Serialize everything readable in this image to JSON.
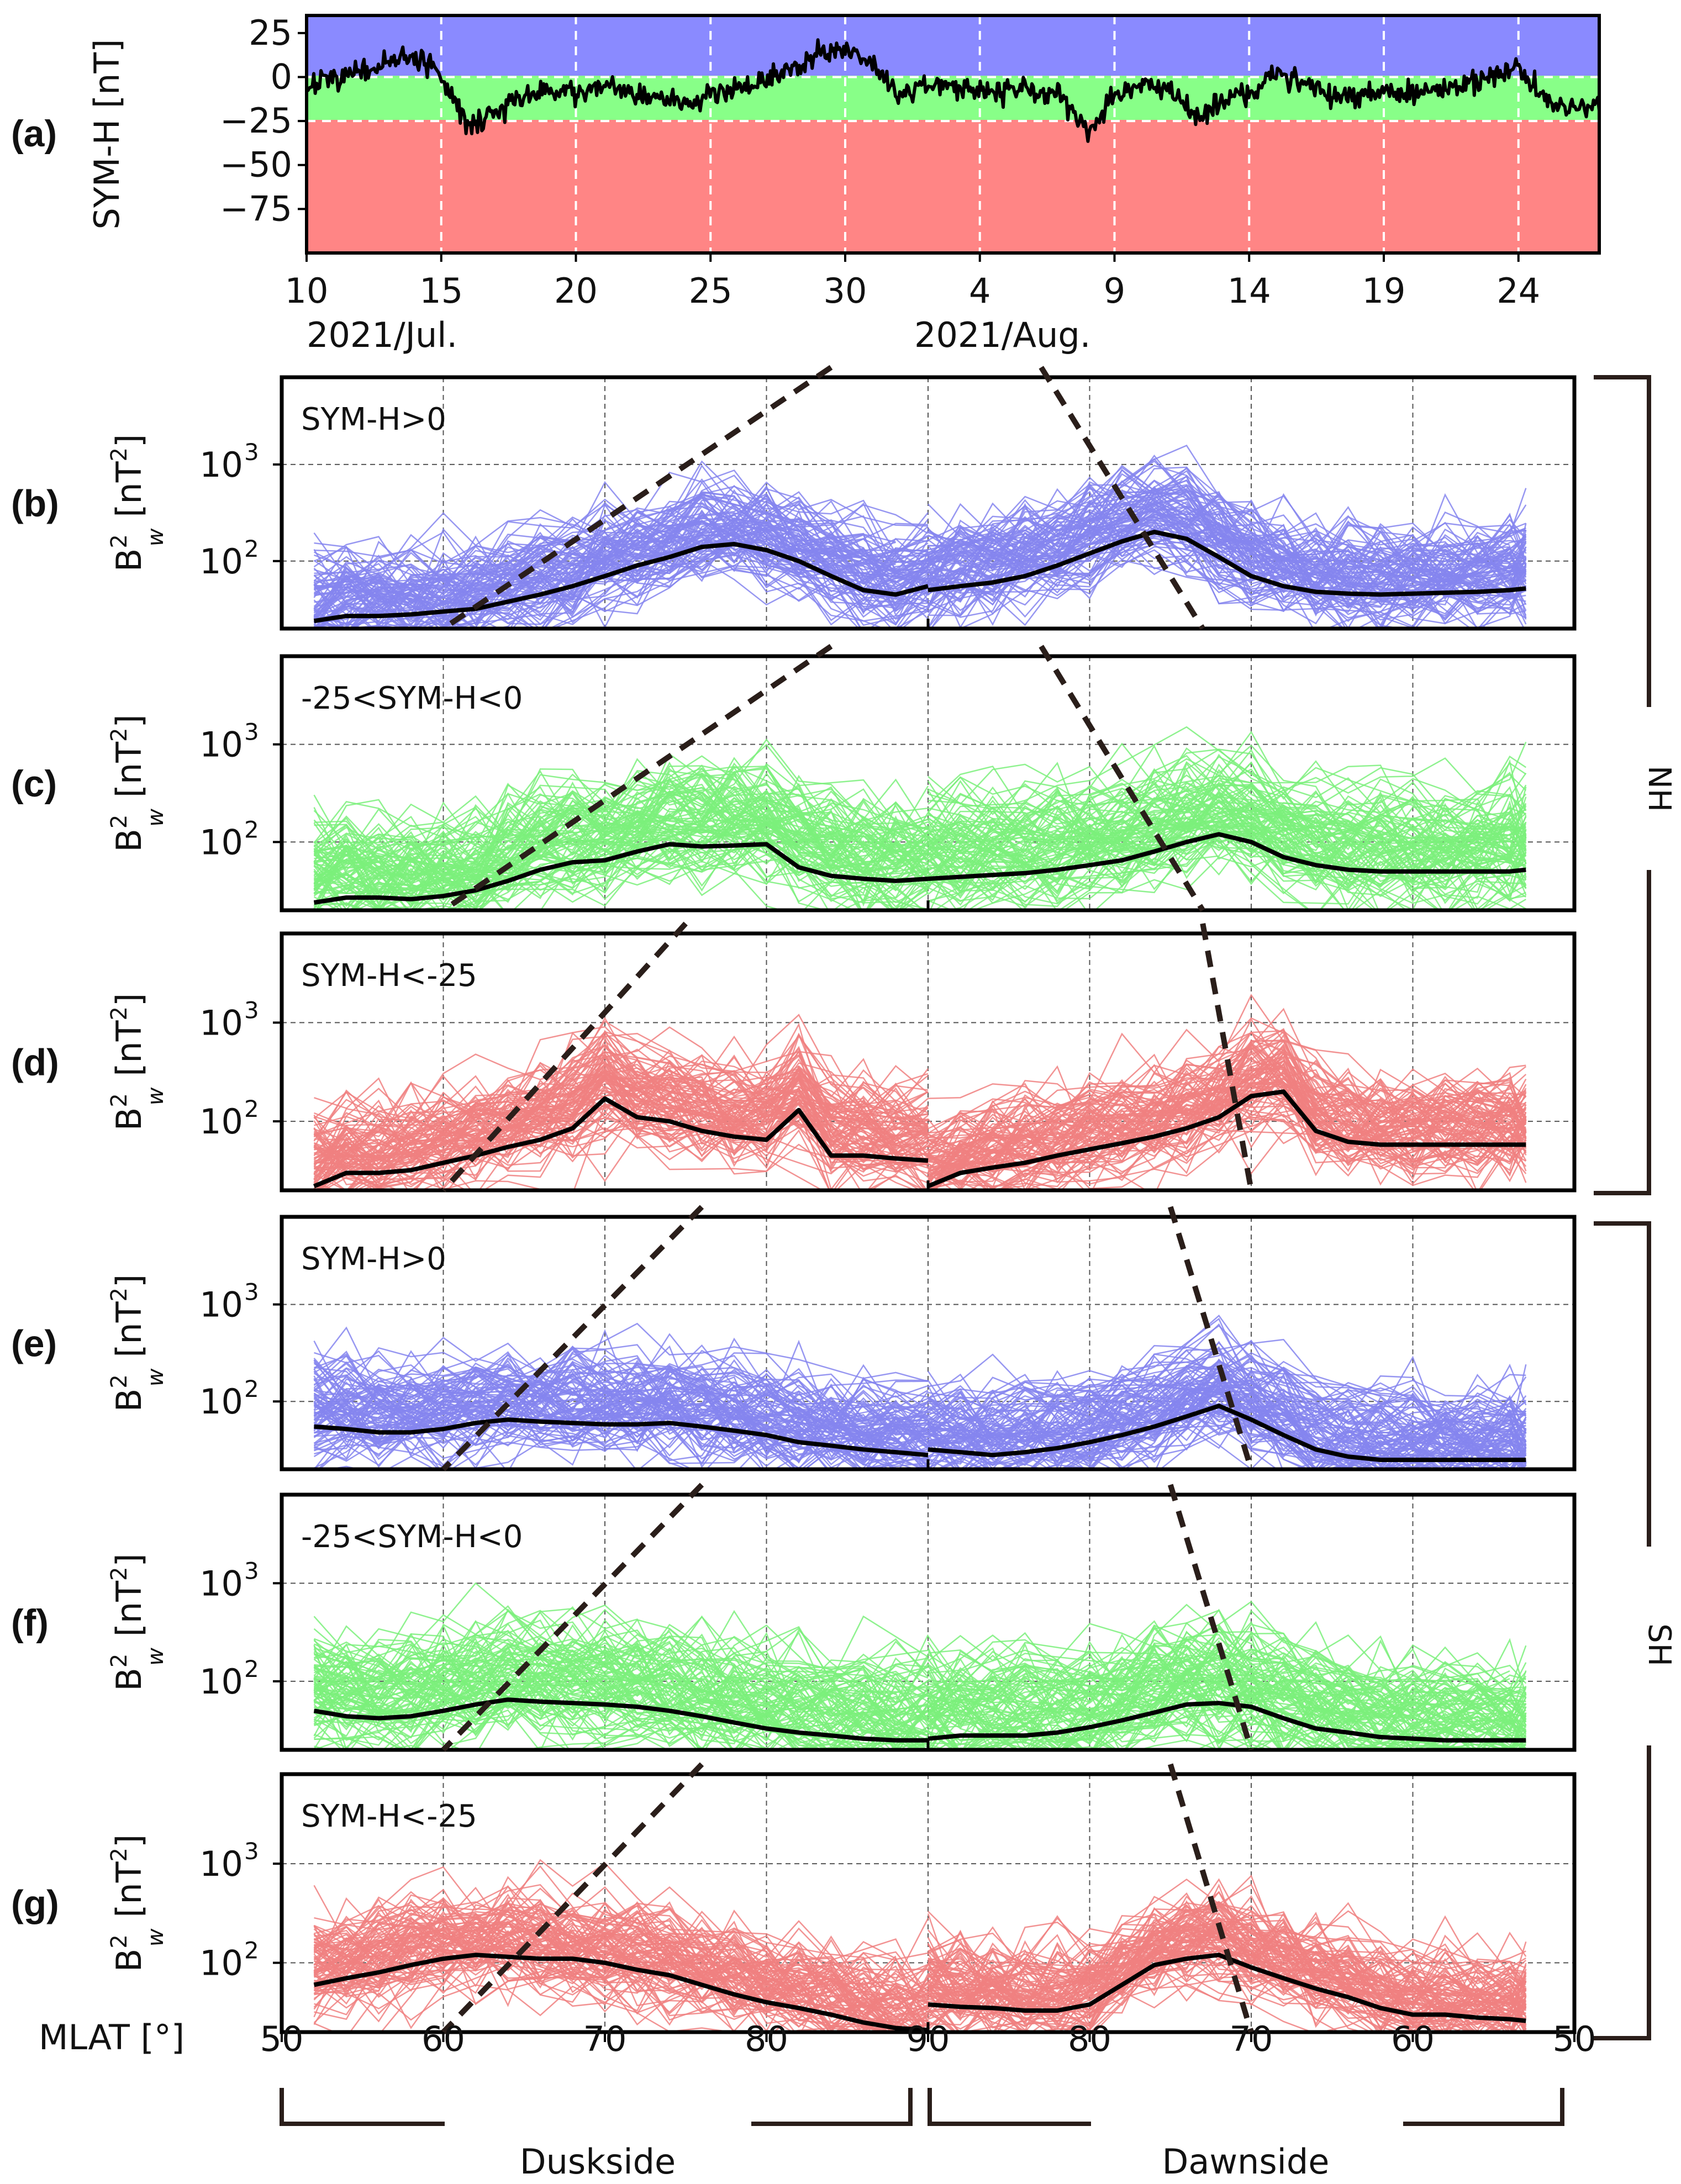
{
  "chart_data": [
    {
      "panel": "(a)",
      "type": "line",
      "ylabel": "SYM-H [nT]",
      "ylim": [
        -100,
        35
      ],
      "y_ticks": [
        25,
        0,
        -25,
        -50,
        -75
      ],
      "y_tick_labels": [
        "25",
        "0",
        "−25",
        "−50",
        "−75"
      ],
      "x_tick_labels": [
        "10",
        "15",
        "20",
        "25",
        "30",
        "4",
        "9",
        "14",
        "19",
        "24"
      ],
      "x_tick_days": [
        0,
        5,
        10,
        15,
        20,
        25,
        30,
        35,
        40,
        45
      ],
      "x_range_days": [
        0,
        48
      ],
      "month_labels": [
        "2021/Jul.",
        "2021/Aug."
      ],
      "threshold_lines": [
        0,
        -25
      ],
      "bands": [
        {
          "from": 0,
          "to": 35,
          "color": "#8a8aff"
        },
        {
          "from": -25,
          "to": 0,
          "color": "#88ff88"
        },
        {
          "from": -100,
          "to": -25,
          "color": "#ff8585"
        }
      ],
      "series_color": "#000000",
      "day_values": [
        -5,
        -2,
        2,
        8,
        12,
        0,
        -28,
        -20,
        -12,
        -8,
        -8,
        -4,
        -8,
        -12,
        -14,
        -10,
        -5,
        -2,
        4,
        12,
        18,
        8,
        -10,
        -4,
        -6,
        -8,
        -6,
        -8,
        -10,
        -30,
        -12,
        -4,
        -6,
        -22,
        -14,
        -8,
        2,
        -2,
        -10,
        -12,
        -6,
        -10,
        -6,
        -4,
        0,
        6,
        -14,
        -18,
        -16
      ]
    },
    {
      "type": "line",
      "layout": "stacked",
      "x_axis_label": "MLAT [°]",
      "x_tick_labels": [
        "50",
        "60",
        "70",
        "80",
        "90",
        "80",
        "70",
        "60",
        "50"
      ],
      "x_side_labels": [
        "Duskside",
        "Dawnside"
      ],
      "x_range": [
        50,
        90,
        50
      ],
      "y_scale": "log",
      "ylim": [
        20,
        8000
      ],
      "y_tick_labels": [
        [
          "10",
          "3"
        ],
        [
          "10",
          "2"
        ]
      ],
      "hemisphere_labels": [
        "NH",
        "SH"
      ],
      "ylabel": {
        "base": "B",
        "sup": "2",
        "sub": "w",
        "unit": " [nT",
        "unit_sup": "2",
        "close": "]"
      },
      "dusk_x": [
        52,
        54,
        56,
        58,
        60,
        62,
        64,
        66,
        68,
        70,
        72,
        74,
        76,
        78,
        80,
        82,
        84,
        86,
        88,
        90
      ],
      "dawn_x": [
        90,
        88,
        86,
        84,
        82,
        80,
        78,
        76,
        74,
        72,
        70,
        68,
        66,
        64,
        62,
        60,
        58,
        56,
        54,
        53
      ],
      "panels": [
        {
          "label": "(b)",
          "hemisphere": "NH",
          "condition": "SYM-H>0",
          "color": "#8585ee",
          "dusk_median": [
            24,
            27,
            27,
            28,
            30,
            32,
            38,
            45,
            55,
            70,
            90,
            110,
            140,
            150,
            130,
            100,
            70,
            50,
            45,
            55
          ],
          "dawn_median": [
            50,
            55,
            60,
            70,
            90,
            120,
            160,
            200,
            170,
            110,
            70,
            55,
            48,
            46,
            45,
            46,
            47,
            48,
            50,
            52
          ],
          "dusk_dashed": [
            84,
            30
          ],
          "dawn_dashed": [
            83,
            73
          ]
        },
        {
          "label": "(c)",
          "hemisphere": "NH",
          "condition": "-25<SYM-H<0",
          "color": "#7bf07b",
          "dusk_median": [
            24,
            27,
            27,
            26,
            28,
            32,
            40,
            52,
            62,
            65,
            80,
            95,
            90,
            92,
            95,
            55,
            45,
            42,
            40,
            42
          ],
          "dawn_median": [
            42,
            44,
            46,
            48,
            52,
            58,
            65,
            80,
            100,
            120,
            100,
            70,
            58,
            52,
            50,
            50,
            50,
            50,
            50,
            52
          ],
          "dusk_dashed": [
            84,
            30
          ],
          "dawn_dashed": [
            83,
            73
          ]
        },
        {
          "label": "(d)",
          "hemisphere": "NH",
          "condition": "SYM-H<-25",
          "color": "#f08080",
          "dusk_median": [
            22,
            30,
            30,
            32,
            38,
            45,
            55,
            65,
            85,
            170,
            110,
            100,
            80,
            70,
            65,
            130,
            45,
            45,
            42,
            40
          ],
          "dawn_median": [
            22,
            30,
            34,
            38,
            45,
            52,
            60,
            70,
            85,
            110,
            180,
            200,
            80,
            62,
            58,
            58,
            58,
            58,
            58,
            58
          ],
          "dusk_dashed": [
            75,
            20
          ],
          "dawn_dashed": [
            73,
            20
          ]
        },
        {
          "label": "(e)",
          "hemisphere": "SH",
          "condition": "SYM-H>0",
          "color": "#8585ee",
          "dusk_median": [
            55,
            52,
            48,
            48,
            52,
            60,
            65,
            62,
            60,
            58,
            58,
            60,
            55,
            50,
            45,
            38,
            35,
            32,
            30,
            28
          ],
          "dawn_median": [
            32,
            30,
            28,
            30,
            33,
            38,
            45,
            55,
            70,
            90,
            65,
            45,
            32,
            27,
            25,
            25,
            25,
            25,
            25,
            25
          ],
          "dusk_dashed": [
            76,
            20
          ],
          "dawn_dashed": [
            75,
            20
          ]
        },
        {
          "label": "(f)",
          "hemisphere": "SH",
          "condition": "-25<SYM-H<0",
          "color": "#7bf07b",
          "dusk_median": [
            50,
            44,
            42,
            44,
            50,
            58,
            65,
            62,
            60,
            58,
            55,
            50,
            44,
            38,
            33,
            30,
            28,
            26,
            25,
            25
          ],
          "dawn_median": [
            26,
            28,
            28,
            28,
            30,
            34,
            40,
            48,
            58,
            60,
            55,
            42,
            33,
            30,
            27,
            26,
            25,
            25,
            25,
            25
          ],
          "dusk_dashed": [
            76,
            20
          ],
          "dawn_dashed": [
            75,
            20
          ]
        },
        {
          "label": "(g)",
          "hemisphere": "SH",
          "condition": "SYM-H<-25",
          "color": "#f08080",
          "dusk_median": [
            60,
            70,
            80,
            95,
            110,
            120,
            115,
            110,
            110,
            100,
            85,
            75,
            60,
            48,
            40,
            35,
            30,
            25,
            22,
            21
          ],
          "dawn_median": [
            38,
            36,
            35,
            33,
            33,
            38,
            60,
            95,
            110,
            120,
            90,
            70,
            55,
            45,
            35,
            30,
            30,
            28,
            27,
            26
          ],
          "dusk_dashed": [
            76,
            20
          ],
          "dawn_dashed": [
            75,
            20
          ]
        }
      ]
    }
  ]
}
